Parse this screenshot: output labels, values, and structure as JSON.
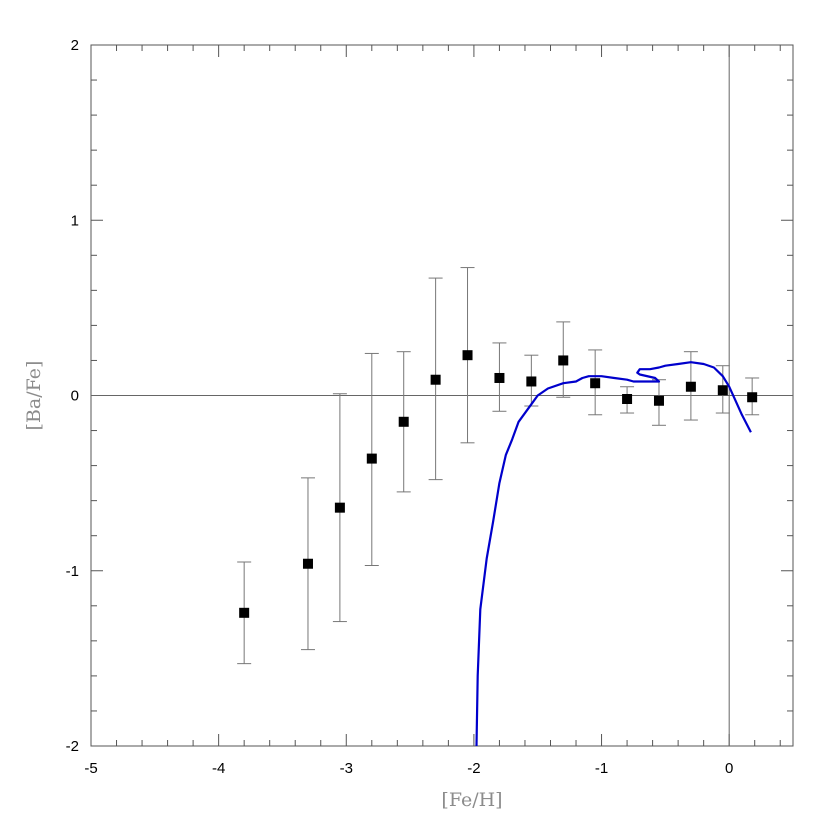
{
  "chart_data": {
    "type": "scatter",
    "title": "",
    "xlabel": "[Fe/H]",
    "ylabel": "[Ba/Fe]",
    "xlim": [
      -5,
      0.5
    ],
    "ylim": [
      -2,
      2
    ],
    "xticks": [
      -5,
      -4,
      -3,
      -2,
      -1,
      0
    ],
    "yticks": [
      -2,
      -1,
      0,
      1,
      2
    ],
    "xtick_labels": [
      "-5",
      "-4",
      "-3",
      "-2",
      "-1",
      "0"
    ],
    "ytick_labels": [
      "-2",
      "-1",
      "0",
      "1",
      "2"
    ],
    "grid": false,
    "reference_lines": {
      "y": 0,
      "x": 0
    },
    "series": [
      {
        "type": "scatter",
        "marker": "square",
        "color": "#000000",
        "points": [
          {
            "x": -3.8,
            "y": -1.24,
            "ylow": -1.53,
            "yhigh": -0.95
          },
          {
            "x": -3.3,
            "y": -0.96,
            "ylow": -1.45,
            "yhigh": -0.47
          },
          {
            "x": -3.05,
            "y": -0.64,
            "ylow": -1.29,
            "yhigh": 0.01
          },
          {
            "x": -2.8,
            "y": -0.36,
            "ylow": -0.97,
            "yhigh": 0.24
          },
          {
            "x": -2.55,
            "y": -0.15,
            "ylow": -0.55,
            "yhigh": 0.25
          },
          {
            "x": -2.3,
            "y": 0.09,
            "ylow": -0.48,
            "yhigh": 0.67
          },
          {
            "x": -2.05,
            "y": 0.23,
            "ylow": -0.27,
            "yhigh": 0.73
          },
          {
            "x": -1.8,
            "y": 0.1,
            "ylow": -0.09,
            "yhigh": 0.3
          },
          {
            "x": -1.55,
            "y": 0.08,
            "ylow": -0.06,
            "yhigh": 0.23
          },
          {
            "x": -1.3,
            "y": 0.2,
            "ylow": -0.01,
            "yhigh": 0.42
          },
          {
            "x": -1.05,
            "y": 0.07,
            "ylow": -0.11,
            "yhigh": 0.26
          },
          {
            "x": -0.8,
            "y": -0.02,
            "ylow": -0.1,
            "yhigh": 0.05
          },
          {
            "x": -0.55,
            "y": -0.03,
            "ylow": -0.17,
            "yhigh": 0.09
          },
          {
            "x": -0.3,
            "y": 0.05,
            "ylow": -0.14,
            "yhigh": 0.25
          },
          {
            "x": -0.05,
            "y": 0.03,
            "ylow": -0.1,
            "yhigh": 0.17
          },
          {
            "x": 0.18,
            "y": -0.01,
            "ylow": -0.11,
            "yhigh": 0.1
          }
        ]
      },
      {
        "type": "line",
        "color": "#0000cc",
        "x": [
          -1.98,
          -1.97,
          -1.95,
          -1.9,
          -1.85,
          -1.8,
          -1.75,
          -1.7,
          -1.65,
          -1.55,
          -1.5,
          -1.42,
          -1.3,
          -1.2,
          -1.15,
          -1.1,
          -1.0,
          -0.9,
          -0.8,
          -0.75,
          -0.6,
          -0.55,
          -0.58,
          -0.7,
          -0.72,
          -0.7,
          -0.62,
          -0.55,
          -0.5,
          -0.4,
          -0.3,
          -0.2,
          -0.12,
          -0.05,
          0.0,
          0.05,
          0.1,
          0.17
        ],
        "y": [
          -2.0,
          -1.6,
          -1.22,
          -0.93,
          -0.72,
          -0.5,
          -0.34,
          -0.25,
          -0.15,
          -0.05,
          0.0,
          0.04,
          0.07,
          0.08,
          0.1,
          0.11,
          0.11,
          0.1,
          0.09,
          0.08,
          0.08,
          0.08,
          0.1,
          0.12,
          0.13,
          0.15,
          0.15,
          0.16,
          0.17,
          0.18,
          0.19,
          0.18,
          0.16,
          0.11,
          0.05,
          -0.03,
          -0.11,
          -0.21
        ]
      }
    ]
  }
}
